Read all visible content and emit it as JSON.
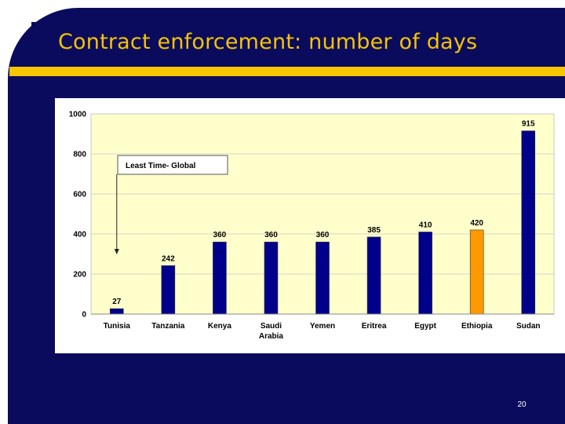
{
  "slide": {
    "title": "Contract enforcement:  number of days",
    "page_number": "20",
    "colors": {
      "frame": "#0b0b5e",
      "title": "#f5c400",
      "accent_bar": "#f7c600",
      "plot_bg": "#ffffcc",
      "bar": "#00008b",
      "highlight_bar": "#ff9900"
    }
  },
  "chart_data": {
    "type": "bar",
    "title": "",
    "xlabel": "",
    "ylabel": "",
    "categories": [
      "Tunisia",
      "Tanzania",
      "Kenya",
      "Saudi Arabia",
      "Yemen",
      "Eritrea",
      "Egypt",
      "Ethiopia",
      "Sudan"
    ],
    "category_lines": [
      [
        "Tunisia"
      ],
      [
        "Tanzania"
      ],
      [
        "Kenya"
      ],
      [
        "Saudi",
        "Arabia"
      ],
      [
        "Yemen"
      ],
      [
        "Eritrea"
      ],
      [
        "Egypt"
      ],
      [
        "Ethiopia"
      ],
      [
        "Sudan"
      ]
    ],
    "values": [
      27,
      242,
      360,
      360,
      360,
      385,
      410,
      420,
      915
    ],
    "value_labels": [
      "27",
      "242",
      "360",
      "360",
      "360",
      "385",
      "410",
      "420",
      "915"
    ],
    "highlight": "Ethiopia",
    "ylim": [
      0,
      1000
    ],
    "yticks": [
      0,
      200,
      400,
      600,
      800,
      1000
    ],
    "ytick_labels": [
      "0",
      "200",
      "400",
      "600",
      "800",
      "1000"
    ],
    "grid": true,
    "legend": "none",
    "annotation": {
      "text": "Least Time- Global",
      "points_to": "Tunisia"
    }
  }
}
